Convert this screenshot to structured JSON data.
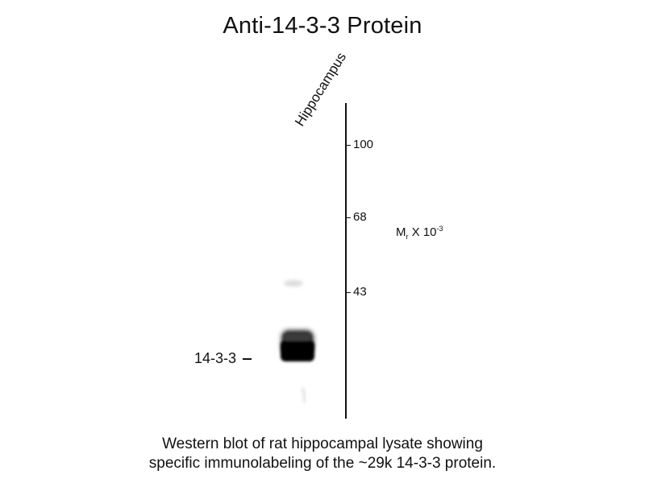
{
  "title": "Anti-14-3-3 Protein",
  "lane_label": "Hippocampus",
  "markers": [
    {
      "label": "100"
    },
    {
      "label": "68"
    },
    {
      "label": "43"
    }
  ],
  "unit": {
    "main": "M",
    "sub": "r",
    "mid": " X 10",
    "sup": "-3"
  },
  "band_label": "14-3-3",
  "caption": {
    "line1": "Western blot of rat hippocampal lysate showing",
    "line2": "specific immunolabeling of the ~29k 14-3-3 protein."
  }
}
